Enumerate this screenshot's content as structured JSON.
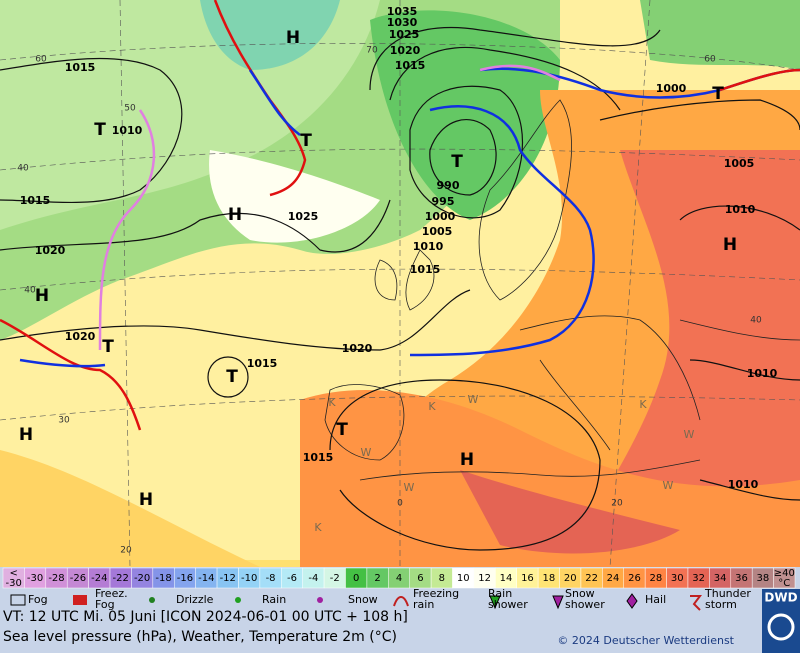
{
  "header": {
    "valid_time": "VT: 12 UTC Mi.  05 Juni [ICON 2024-06-01  00 UTC + 108 h]",
    "description": "Sea level pressure (hPa), Weather, Temperature 2m (°C)",
    "copyright": "© 2024 Deutscher Wetterdienst",
    "logo": "DWD"
  },
  "map": {
    "isobar_labels": [
      "1035",
      "1030",
      "1025",
      "1020",
      "1015",
      "1015",
      "1010",
      "1015",
      "1025",
      "1020",
      "1020",
      "1020",
      "1015",
      "1015",
      "990",
      "995",
      "1000",
      "1005",
      "1010",
      "1015",
      "1000",
      "1005",
      "1010",
      "1010",
      "1010"
    ],
    "systems": [
      "H",
      "T",
      "T",
      "T",
      "H",
      "H",
      "T",
      "T",
      "T",
      "H",
      "H",
      "H",
      "H",
      "T"
    ],
    "grid_labels": [
      "60",
      "50",
      "40",
      "40",
      "30",
      "20",
      "0",
      "20",
      "40",
      "60",
      "70"
    ],
    "letters": [
      "K",
      "K",
      "W",
      "W",
      "W",
      "K",
      "W",
      "K",
      "W"
    ]
  },
  "color_scale": {
    "below": [
      "<",
      "-30"
    ],
    "above": [
      "≥40",
      "°C"
    ],
    "steps": [
      {
        "label": "-30",
        "color": "#e0a0e0"
      },
      {
        "label": "-28",
        "color": "#d090d8"
      },
      {
        "label": "-26",
        "color": "#c488d4"
      },
      {
        "label": "-24",
        "color": "#b47cd4"
      },
      {
        "label": "-22",
        "color": "#a478d8"
      },
      {
        "label": "-20",
        "color": "#9484e0"
      },
      {
        "label": "-18",
        "color": "#8494e8"
      },
      {
        "label": "-16",
        "color": "#84a4ee"
      },
      {
        "label": "-14",
        "color": "#84b4f0"
      },
      {
        "label": "-12",
        "color": "#88c4f2"
      },
      {
        "label": "-10",
        "color": "#94d2f6"
      },
      {
        "label": "-8",
        "color": "#a4def8"
      },
      {
        "label": "-6",
        "color": "#b4eaf6"
      },
      {
        "label": "-4",
        "color": "#c4f2ee"
      },
      {
        "label": "-2",
        "color": "#d4f6e4"
      },
      {
        "label": "0",
        "color": "#44c044"
      },
      {
        "label": "2",
        "color": "#64c864"
      },
      {
        "label": "4",
        "color": "#84d074"
      },
      {
        "label": "6",
        "color": "#a4dc84"
      },
      {
        "label": "8",
        "color": "#c4ea94"
      },
      {
        "label": "10",
        "color": "#ffffff"
      },
      {
        "label": "12",
        "color": "#fffff0"
      },
      {
        "label": "14",
        "color": "#ffffc4"
      },
      {
        "label": "16",
        "color": "#fff298"
      },
      {
        "label": "18",
        "color": "#ffe474"
      },
      {
        "label": "20",
        "color": "#ffd464"
      },
      {
        "label": "22",
        "color": "#ffc454"
      },
      {
        "label": "24",
        "color": "#ffa844"
      },
      {
        "label": "26",
        "color": "#ff9444"
      },
      {
        "label": "28",
        "color": "#ff8444"
      },
      {
        "label": "30",
        "color": "#f27254"
      },
      {
        "label": "32",
        "color": "#e46454"
      },
      {
        "label": "34",
        "color": "#d46464"
      },
      {
        "label": "36",
        "color": "#c47474"
      },
      {
        "label": "38",
        "color": "#b48484"
      }
    ]
  },
  "legend": [
    [
      "Fog"
    ],
    [
      "Freez.",
      "Fog"
    ],
    [
      "Drizzle"
    ],
    [
      "Rain"
    ],
    [
      "Snow"
    ],
    [
      "Freezing",
      "rain"
    ],
    [
      "Rain",
      "shower"
    ],
    [
      "Snow",
      "shower"
    ],
    [
      "Hail"
    ],
    [
      "Thunder",
      "storm"
    ]
  ]
}
